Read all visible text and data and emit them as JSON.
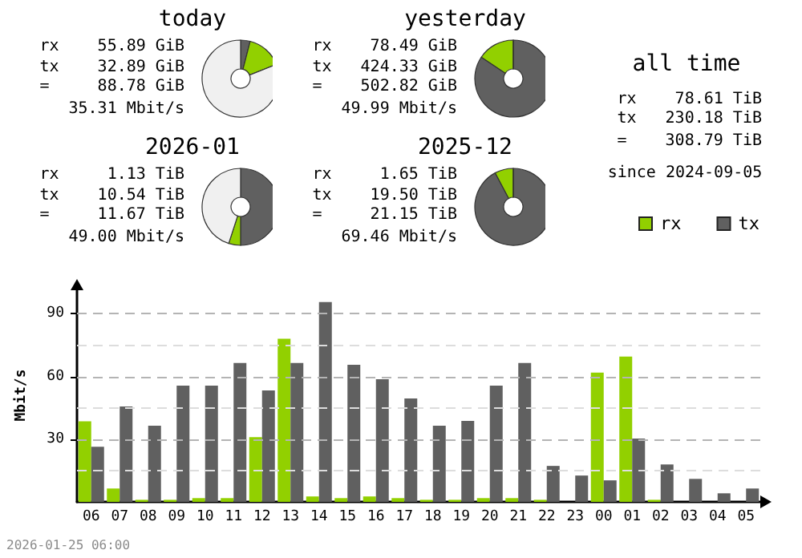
{
  "chart_data": [
    {
      "type": "donut",
      "title": "today",
      "annotations": [
        "rx    55.89 GiB",
        "tx    32.89 GiB",
        "=     88.78 GiB",
        "35.31 Mbit/s"
      ],
      "categories": [
        null,
        null,
        null
      ],
      "values": [
        4,
        15,
        81
      ],
      "colors": [
        "#606060",
        "#92d000",
        "#f0f0f0"
      ]
    },
    {
      "type": "donut",
      "title": "yesterday",
      "annotations": [
        "rx    78.49 GiB",
        "tx   424.33 GiB",
        "=    502.82 GiB",
        "49.99 Mbit/s"
      ],
      "categories": [
        null,
        null,
        null
      ],
      "values": [
        84.4,
        15.6,
        0
      ],
      "colors": [
        "#606060",
        "#92d000",
        "#f0f0f0"
      ]
    },
    {
      "type": "donut",
      "title": "2026-01",
      "annotations": [
        "rx     1.13 TiB",
        "tx    10.54 TiB",
        "=     11.67 TiB",
        "49.00 Mbit/s"
      ],
      "categories": [
        null,
        null,
        null
      ],
      "values": [
        50,
        5,
        45
      ],
      "colors": [
        "#606060",
        "#92d000",
        "#f0f0f0"
      ]
    },
    {
      "type": "donut",
      "title": "2025-12",
      "annotations": [
        "rx     1.65 TiB",
        "tx    19.50 TiB",
        "=     21.15 TiB",
        "69.46 Mbit/s"
      ],
      "categories": [
        null,
        null,
        null
      ],
      "values": [
        92.2,
        7.8,
        0
      ],
      "colors": [
        "#606060",
        "#92d000",
        "#f0f0f0"
      ]
    },
    {
      "type": "other",
      "title": "all time",
      "annotations": [
        "rx    78.61 TiB",
        "tx   230.18 TiB",
        "=    308.79 TiB",
        "since 2024-09-05"
      ]
    },
    {
      "type": "bar",
      "ylabel": "Mbit/s",
      "categories": [
        "06",
        "07",
        "08",
        "09",
        "10",
        "11",
        "12",
        "13",
        "14",
        "15",
        "16",
        "17",
        "18",
        "19",
        "20",
        "21",
        "22",
        "23",
        "00",
        "01",
        "02",
        "03",
        "04",
        "05"
      ],
      "series": [
        {
          "name": "rx",
          "color": "#92d000",
          "values": [
            38.5,
            6.4,
            1,
            1,
            1.8,
            1.8,
            31,
            78,
            2.6,
            1.8,
            2.6,
            1.8,
            1,
            1,
            1.8,
            1.8,
            1,
            0,
            61.8,
            69.5,
            1,
            0,
            0,
            0
          ]
        },
        {
          "name": "tx",
          "color": "#606060",
          "values": [
            26.4,
            45.6,
            36.4,
            55.6,
            55.6,
            66.4,
            53.3,
            66.4,
            95.6,
            65.6,
            58.7,
            49.5,
            36.4,
            38.7,
            55.6,
            66.4,
            17.2,
            12.6,
            10.3,
            30.3,
            17.9,
            11,
            4.1,
            6.4
          ]
        }
      ],
      "ylim": [
        0,
        102
      ],
      "yticks": [
        {
          "value": 15,
          "label": null
        },
        30,
        {
          "value": 45,
          "label": null
        },
        60,
        {
          "value": 75,
          "label": null
        },
        90
      ],
      "grid": "y",
      "legend": "top right",
      "annotations": [
        "2026-01-25 06:00"
      ]
    }
  ]
}
